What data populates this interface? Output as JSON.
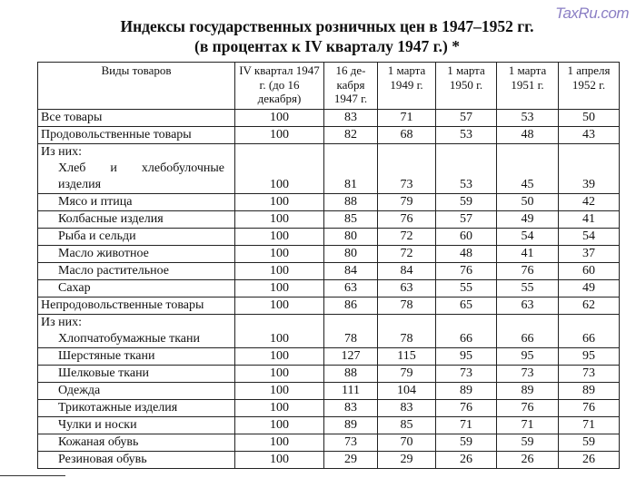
{
  "watermark": "TaxRu.com",
  "title_line1": "Индексы государственных розничных цен в 1947–1952 гг.",
  "title_line2": "(в процентах к IV кварталу 1947 г.) *",
  "columns": [
    "Виды товаров",
    "IV квартал 1947 г. (до 16 декабря)",
    "16 де-кабря 1947 г.",
    "1 марта 1949 г.",
    "1 марта 1950 г.",
    "1 марта 1951 г.",
    "1 апреля 1952 г."
  ],
  "rows": [
    {
      "name": "Все товары",
      "values": [
        "100",
        "83",
        "71",
        "57",
        "53",
        "50"
      ]
    },
    {
      "name": "Продовольственные товары",
      "values": [
        "100",
        "82",
        "68",
        "53",
        "48",
        "43"
      ]
    },
    {
      "group": "Из них:",
      "name": "Хлеб и хлебобулочные изделия",
      "values": [
        "100",
        "81",
        "73",
        "53",
        "45",
        "39"
      ]
    },
    {
      "name": "Мясо и птица",
      "values": [
        "100",
        "88",
        "79",
        "59",
        "50",
        "42"
      ]
    },
    {
      "name": "Колбасные изделия",
      "values": [
        "100",
        "85",
        "76",
        "57",
        "49",
        "41"
      ]
    },
    {
      "name": "Рыба и сельди",
      "values": [
        "100",
        "80",
        "72",
        "60",
        "54",
        "54"
      ]
    },
    {
      "name": "Масло животное",
      "values": [
        "100",
        "80",
        "72",
        "48",
        "41",
        "37"
      ]
    },
    {
      "name": "Масло растительное",
      "values": [
        "100",
        "84",
        "84",
        "76",
        "76",
        "60"
      ]
    },
    {
      "name": "Сахар",
      "values": [
        "100",
        "63",
        "63",
        "55",
        "55",
        "49"
      ]
    },
    {
      "name": "Непродовольственные товары",
      "values": [
        "100",
        "86",
        "78",
        "65",
        "63",
        "62"
      ]
    },
    {
      "group": "Из них:",
      "name": "Хлопчатобумажные ткани",
      "values": [
        "100",
        "78",
        "78",
        "66",
        "66",
        "66"
      ]
    },
    {
      "name": "Шерстяные ткани",
      "values": [
        "100",
        "127",
        "115",
        "95",
        "95",
        "95"
      ]
    },
    {
      "name": "Шелковые ткани",
      "values": [
        "100",
        "88",
        "79",
        "73",
        "73",
        "73"
      ]
    },
    {
      "name": "Одежда",
      "values": [
        "100",
        "111",
        "104",
        "89",
        "89",
        "89"
      ]
    },
    {
      "name": "Трикотажные изделия",
      "values": [
        "100",
        "83",
        "83",
        "76",
        "76",
        "76"
      ]
    },
    {
      "name": "Чулки и носки",
      "values": [
        "100",
        "89",
        "85",
        "71",
        "71",
        "71"
      ]
    },
    {
      "name": "Кожаная обувь",
      "values": [
        "100",
        "73",
        "70",
        "59",
        "59",
        "59"
      ]
    },
    {
      "name": "Резиновая обувь",
      "values": [
        "100",
        "29",
        "29",
        "26",
        "26",
        "26"
      ]
    }
  ]
}
